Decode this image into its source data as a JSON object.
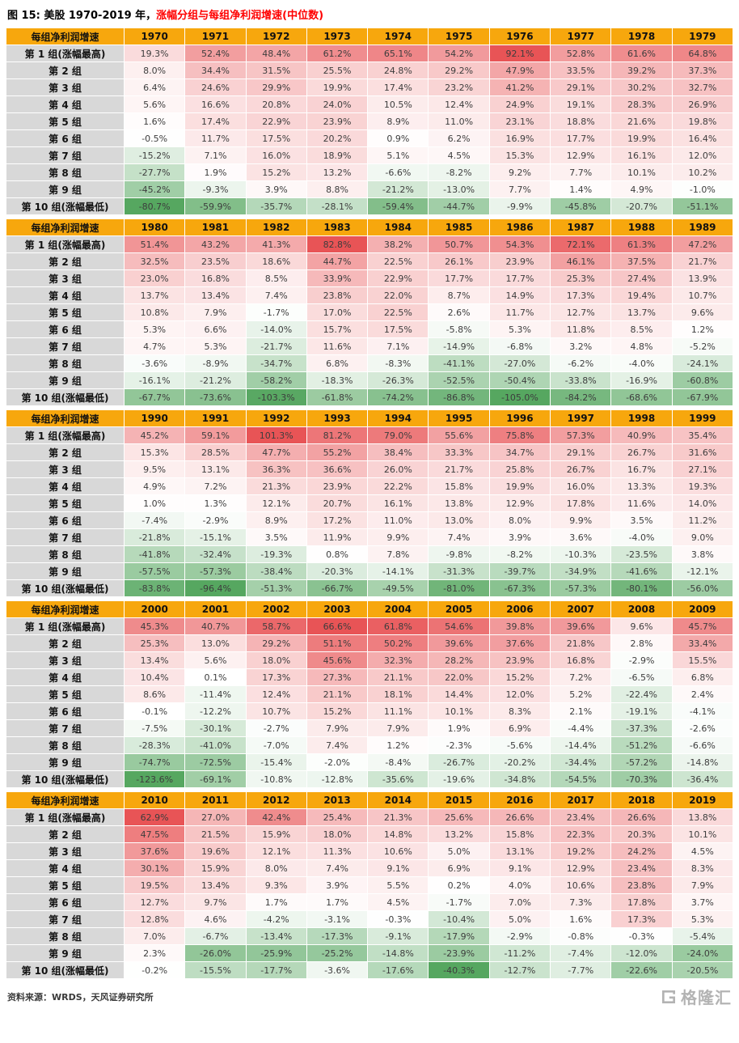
{
  "title": {
    "prefix": "图 15: 美股 1970-2019 年，",
    "highlight": "涨幅分组与每组净利润增速(中位数)"
  },
  "table": {
    "corner_label": "每组净利润增速",
    "row_labels": [
      "第 1 组(涨幅最高)",
      "第 2 组",
      "第 3 组",
      "第 4 组",
      "第 5 组",
      "第 6 组",
      "第 7 组",
      "第 8 组",
      "第 9 组",
      "第 10 组(涨幅最低)"
    ]
  },
  "footer": {
    "source": "资料来源：WRDS，天风证券研究所",
    "logo": "格隆汇"
  },
  "colors": {
    "header_bg": "#F7A70D",
    "label_bg": "#D8D8D8",
    "positive": "#E85456",
    "negative": "#56A760",
    "mid": "#FFFFFF"
  },
  "chart_data": {
    "type": "heatmap",
    "title": "美股 1970-2019 年，涨幅分组与每组净利润增速(中位数)",
    "value_unit": "%",
    "row_labels": [
      "第 1 组(涨幅最高)",
      "第 2 组",
      "第 3 组",
      "第 4 组",
      "第 5 组",
      "第 6 组",
      "第 7 组",
      "第 8 组",
      "第 9 组",
      "第 10 组(涨幅最低)"
    ],
    "tables": [
      {
        "years": [
          "1970",
          "1971",
          "1972",
          "1973",
          "1974",
          "1975",
          "1976",
          "1977",
          "1978",
          "1979"
        ],
        "rows": [
          [
            19.3,
            52.4,
            48.4,
            61.2,
            65.1,
            54.2,
            92.1,
            52.8,
            61.6,
            64.8
          ],
          [
            8.0,
            34.4,
            31.5,
            25.5,
            24.8,
            29.2,
            47.9,
            33.5,
            39.2,
            37.3
          ],
          [
            6.4,
            24.6,
            29.9,
            19.9,
            17.4,
            23.2,
            41.2,
            29.1,
            30.2,
            32.7
          ],
          [
            5.6,
            16.6,
            20.8,
            24.0,
            10.5,
            12.4,
            24.9,
            19.1,
            28.3,
            26.9
          ],
          [
            1.6,
            17.4,
            22.9,
            23.9,
            8.9,
            11.0,
            23.1,
            18.8,
            21.6,
            19.8
          ],
          [
            -0.5,
            11.7,
            17.5,
            20.2,
            0.9,
            6.2,
            16.9,
            17.7,
            19.9,
            16.4
          ],
          [
            -15.2,
            7.1,
            16.0,
            18.9,
            5.1,
            4.5,
            15.3,
            12.9,
            16.1,
            12.0
          ],
          [
            -27.7,
            1.9,
            15.2,
            13.2,
            -6.6,
            -8.2,
            9.2,
            7.7,
            10.1,
            10.2
          ],
          [
            -45.2,
            -9.3,
            3.9,
            8.8,
            -21.2,
            -13.0,
            7.7,
            1.4,
            4.9,
            -1.0
          ],
          [
            -80.7,
            -59.9,
            -35.7,
            -28.1,
            -59.4,
            -44.7,
            -9.9,
            -45.8,
            -20.7,
            -51.1
          ]
        ]
      },
      {
        "years": [
          "1980",
          "1981",
          "1982",
          "1983",
          "1984",
          "1985",
          "1986",
          "1987",
          "1988",
          "1989"
        ],
        "rows": [
          [
            51.4,
            43.2,
            41.3,
            82.8,
            38.2,
            50.7,
            54.3,
            72.1,
            61.3,
            47.2
          ],
          [
            32.5,
            23.5,
            18.6,
            44.7,
            22.5,
            26.1,
            23.9,
            46.1,
            37.5,
            21.7
          ],
          [
            23.0,
            16.8,
            8.5,
            33.9,
            22.9,
            17.7,
            17.7,
            25.3,
            27.4,
            13.9
          ],
          [
            13.7,
            13.4,
            7.4,
            23.8,
            22.0,
            8.7,
            14.9,
            17.3,
            19.4,
            10.7
          ],
          [
            10.8,
            7.9,
            -1.7,
            17.0,
            22.5,
            2.6,
            11.7,
            12.7,
            13.7,
            9.6
          ],
          [
            5.3,
            6.6,
            -14.0,
            15.7,
            17.5,
            -5.8,
            5.3,
            11.8,
            8.5,
            1.2
          ],
          [
            4.7,
            5.3,
            -21.7,
            11.6,
            7.1,
            -14.9,
            -6.8,
            3.2,
            4.8,
            -5.2
          ],
          [
            -3.6,
            -8.9,
            -34.7,
            6.8,
            -8.3,
            -41.1,
            -27.0,
            -6.2,
            -4.0,
            -24.1
          ],
          [
            -16.1,
            -21.2,
            -58.2,
            -18.3,
            -26.3,
            -52.5,
            -50.4,
            -33.8,
            -16.9,
            -60.8
          ],
          [
            -67.7,
            -73.6,
            -103.3,
            -61.8,
            -74.2,
            -86.8,
            -105.0,
            -84.2,
            -68.6,
            -67.9
          ]
        ]
      },
      {
        "years": [
          "1990",
          "1991",
          "1992",
          "1993",
          "1994",
          "1995",
          "1996",
          "1997",
          "1998",
          "1999"
        ],
        "rows": [
          [
            45.2,
            59.1,
            101.3,
            81.2,
            79.0,
            55.6,
            75.8,
            57.3,
            40.9,
            35.4
          ],
          [
            15.3,
            28.5,
            47.7,
            55.2,
            38.4,
            33.3,
            34.7,
            29.1,
            26.7,
            31.6
          ],
          [
            9.5,
            13.1,
            36.3,
            36.6,
            26.0,
            21.7,
            25.8,
            26.7,
            16.7,
            27.1
          ],
          [
            4.9,
            7.2,
            21.3,
            23.9,
            22.2,
            15.8,
            19.9,
            16.0,
            13.3,
            19.3
          ],
          [
            1.0,
            1.3,
            12.1,
            20.7,
            16.1,
            13.8,
            12.9,
            17.8,
            11.6,
            14.0
          ],
          [
            -7.4,
            -2.9,
            8.9,
            17.2,
            11.0,
            13.0,
            8.0,
            9.9,
            3.5,
            11.2
          ],
          [
            -21.8,
            -15.1,
            3.5,
            11.9,
            9.9,
            7.4,
            3.9,
            3.6,
            -4.0,
            9.0
          ],
          [
            -41.8,
            -32.4,
            -19.3,
            0.8,
            7.8,
            -9.8,
            -8.2,
            -10.3,
            -23.5,
            3.8
          ],
          [
            -57.5,
            -57.3,
            -38.4,
            -20.3,
            -14.1,
            -31.3,
            -39.7,
            -34.9,
            -41.6,
            -12.1
          ],
          [
            -83.8,
            -96.4,
            -51.3,
            -66.7,
            -49.5,
            -81.0,
            -67.3,
            -57.3,
            -80.1,
            -56.0
          ]
        ]
      },
      {
        "years": [
          "2000",
          "2001",
          "2002",
          "2003",
          "2004",
          "2005",
          "2006",
          "2007",
          "2008",
          "2009"
        ],
        "rows": [
          [
            45.3,
            40.7,
            58.7,
            66.6,
            61.8,
            54.6,
            39.8,
            39.6,
            9.6,
            45.7
          ],
          [
            25.3,
            13.0,
            29.2,
            51.1,
            50.2,
            39.6,
            37.6,
            21.8,
            2.8,
            33.4
          ],
          [
            13.4,
            5.6,
            18.0,
            45.6,
            32.3,
            28.2,
            23.9,
            16.8,
            -2.9,
            15.5
          ],
          [
            10.4,
            0.1,
            17.3,
            27.3,
            21.1,
            22.0,
            15.2,
            7.2,
            -6.5,
            6.8
          ],
          [
            8.6,
            -11.4,
            12.4,
            21.1,
            18.1,
            14.4,
            12.0,
            5.2,
            -22.4,
            2.4
          ],
          [
            -0.1,
            -12.2,
            10.7,
            15.2,
            11.1,
            10.1,
            8.3,
            2.1,
            -19.1,
            -4.1
          ],
          [
            -7.5,
            -30.1,
            -2.7,
            7.9,
            7.9,
            1.9,
            6.9,
            -4.4,
            -37.3,
            -2.6
          ],
          [
            -28.3,
            -41.0,
            -7.0,
            7.4,
            1.2,
            -2.3,
            -5.6,
            -14.4,
            -51.2,
            -6.6
          ],
          [
            -74.7,
            -72.5,
            -15.4,
            -2.0,
            -8.4,
            -26.7,
            -20.2,
            -34.4,
            -57.2,
            -14.8
          ],
          [
            -123.6,
            -69.1,
            -10.8,
            -12.8,
            -35.6,
            -19.6,
            -34.8,
            -54.5,
            -70.3,
            -36.4
          ]
        ]
      },
      {
        "years": [
          "2010",
          "2011",
          "2012",
          "2013",
          "2014",
          "2015",
          "2016",
          "2017",
          "2018",
          "2019"
        ],
        "rows": [
          [
            62.9,
            27.0,
            42.4,
            25.4,
            21.3,
            25.6,
            26.6,
            23.4,
            26.6,
            13.8
          ],
          [
            47.5,
            21.5,
            15.9,
            18.0,
            14.8,
            13.2,
            15.8,
            22.3,
            20.3,
            10.1
          ],
          [
            37.6,
            19.6,
            12.1,
            11.3,
            10.6,
            5.0,
            13.1,
            19.2,
            24.2,
            4.5
          ],
          [
            30.1,
            15.9,
            8.0,
            7.4,
            9.1,
            6.9,
            9.1,
            12.9,
            23.4,
            8.3
          ],
          [
            19.5,
            13.4,
            9.3,
            3.9,
            5.5,
            0.2,
            4.0,
            10.6,
            23.8,
            7.9
          ],
          [
            12.7,
            9.7,
            1.7,
            1.7,
            4.5,
            -1.7,
            7.0,
            7.3,
            17.8,
            3.7
          ],
          [
            12.8,
            4.6,
            -4.2,
            -3.1,
            -0.3,
            -10.4,
            5.0,
            1.6,
            17.3,
            5.3
          ],
          [
            7.0,
            -6.7,
            -13.4,
            -17.3,
            -9.1,
            -17.9,
            -2.9,
            -0.8,
            -0.3,
            -5.4
          ],
          [
            2.3,
            -26.0,
            -25.9,
            -25.2,
            -14.8,
            -23.9,
            -11.2,
            -7.4,
            -12.0,
            -24.0
          ],
          [
            -0.2,
            -15.5,
            -17.7,
            -3.6,
            -17.6,
            -40.3,
            -12.7,
            -7.7,
            -22.6,
            -20.5
          ]
        ]
      }
    ]
  }
}
